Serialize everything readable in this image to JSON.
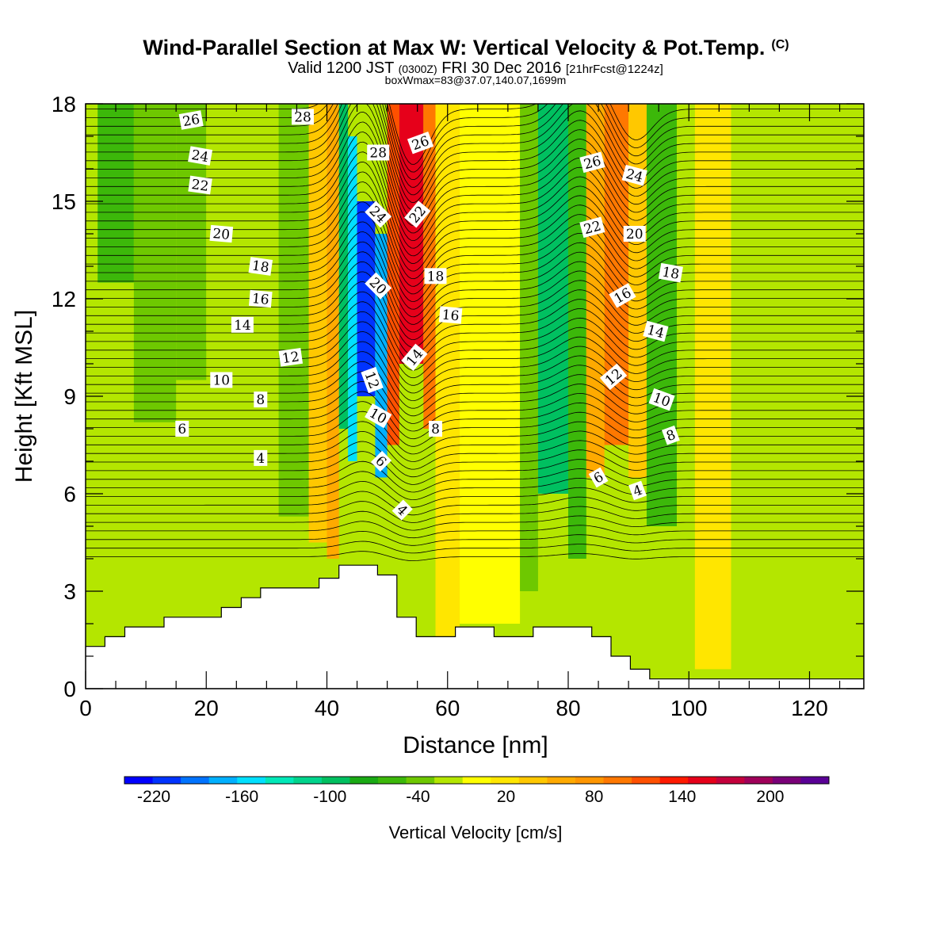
{
  "chart_data": {
    "type": "heatmap",
    "title": "Wind-Parallel Section at Max W: Vertical Velocity & Pot.Temp.",
    "title_mark": "(C)",
    "subtitle": {
      "prefix": "Valid 1200 JST",
      "utc": "(0300Z)",
      "date": "FRI 30 Dec 2016",
      "forecast": "[21hrFcst@1224z]"
    },
    "subsubtitle": "boxWmax=83@37.07,140.07,1699m",
    "xlabel": "Distance [nm]",
    "ylabel": "Height [Kft MSL]",
    "xlim": [
      0,
      129
    ],
    "ylim": [
      0,
      18
    ],
    "x_ticks": [
      0,
      20,
      40,
      60,
      80,
      100,
      120
    ],
    "y_ticks": [
      0,
      3,
      6,
      9,
      12,
      15,
      18
    ],
    "terrain_profile": [
      [
        0,
        1.3
      ],
      [
        3.2,
        1.3
      ],
      [
        3.2,
        1.6
      ],
      [
        6.5,
        1.6
      ],
      [
        6.5,
        1.9
      ],
      [
        13,
        1.9
      ],
      [
        13,
        2.2
      ],
      [
        22.5,
        2.2
      ],
      [
        22.5,
        2.5
      ],
      [
        25.8,
        2.5
      ],
      [
        25.8,
        2.8
      ],
      [
        29,
        2.8
      ],
      [
        29,
        3.1
      ],
      [
        38.7,
        3.1
      ],
      [
        38.7,
        3.4
      ],
      [
        42,
        3.4
      ],
      [
        42,
        3.8
      ],
      [
        48.4,
        3.8
      ],
      [
        48.4,
        3.5
      ],
      [
        51.6,
        3.5
      ],
      [
        51.6,
        2.2
      ],
      [
        54.8,
        2.2
      ],
      [
        54.8,
        1.6
      ],
      [
        61.3,
        1.6
      ],
      [
        61.3,
        1.9
      ],
      [
        67.7,
        1.9
      ],
      [
        67.7,
        1.6
      ],
      [
        74.2,
        1.6
      ],
      [
        74.2,
        1.9
      ],
      [
        83.9,
        1.9
      ],
      [
        83.9,
        1.6
      ],
      [
        87.1,
        1.6
      ],
      [
        87.1,
        1.0
      ],
      [
        90.3,
        1.0
      ],
      [
        90.3,
        0.6
      ],
      [
        93.5,
        0.6
      ],
      [
        93.5,
        0.3
      ],
      [
        129,
        0.3
      ]
    ],
    "vertical_velocity_bands": [
      {
        "x0": 0,
        "x1": 5,
        "w": -20,
        "top": 18
      },
      {
        "x0": 2,
        "x1": 8,
        "w": -60,
        "top": 18,
        "bottom": 12.5
      },
      {
        "x0": 8,
        "x1": 15,
        "w": -40,
        "top": 18,
        "bottom": 8.2
      },
      {
        "x0": 15,
        "x1": 20,
        "w": -30,
        "top": 18,
        "bottom": 9.5
      },
      {
        "x0": 20,
        "x1": 25,
        "w": -20,
        "top": 18,
        "bottom": 10.5
      },
      {
        "x0": 25,
        "x1": 32,
        "w": -5,
        "top": 16,
        "bottom": 6.5
      },
      {
        "x0": 32,
        "x1": 37,
        "w": -40,
        "top": 18,
        "bottom": 5.3
      },
      {
        "x0": 37,
        "x1": 40,
        "w": 45,
        "top": 18,
        "bottom": 4.5
      },
      {
        "x0": 40,
        "x1": 42,
        "w": 75,
        "top": 18,
        "bottom": 4
      },
      {
        "x0": 42,
        "x1": 43.5,
        "w": -100,
        "top": 18,
        "bottom": 8
      },
      {
        "x0": 43.5,
        "x1": 45,
        "w": -150,
        "top": 17,
        "bottom": 7
      },
      {
        "x0": 45,
        "x1": 48,
        "w": -215,
        "top": 15,
        "bottom": 9
      },
      {
        "x0": 48,
        "x1": 50,
        "w": -180,
        "top": 14,
        "bottom": 6.5
      },
      {
        "x0": 50,
        "x1": 52,
        "w": 120,
        "top": 18,
        "bottom": 7.5
      },
      {
        "x0": 52,
        "x1": 56,
        "w": 175,
        "top": 18,
        "bottom": 10
      },
      {
        "x0": 56,
        "x1": 58,
        "w": 100,
        "top": 18,
        "bottom": 8
      },
      {
        "x0": 58,
        "x1": 62,
        "w": 30,
        "top": 18,
        "bottom": 1.6
      },
      {
        "x0": 62,
        "x1": 72,
        "w": 10,
        "top": 18,
        "bottom": 2
      },
      {
        "x0": 72,
        "x1": 75,
        "w": -30,
        "top": 18,
        "bottom": 3
      },
      {
        "x0": 75,
        "x1": 80,
        "w": -90,
        "top": 18,
        "bottom": 6
      },
      {
        "x0": 80,
        "x1": 83,
        "w": -50,
        "top": 18,
        "bottom": 4
      },
      {
        "x0": 83,
        "x1": 86,
        "w": 60,
        "top": 18,
        "bottom": 6.5
      },
      {
        "x0": 86,
        "x1": 90,
        "w": 100,
        "top": 18,
        "bottom": 7.5
      },
      {
        "x0": 90,
        "x1": 93,
        "w": 40,
        "top": 18,
        "bottom": 6.5
      },
      {
        "x0": 93,
        "x1": 98,
        "w": -60,
        "top": 18,
        "bottom": 5
      },
      {
        "x0": 98,
        "x1": 101,
        "w": -20,
        "top": 18,
        "bottom": 4
      },
      {
        "x0": 101,
        "x1": 107,
        "w": 20,
        "top": 18,
        "bottom": 0.6
      },
      {
        "x0": 107,
        "x1": 129,
        "w": -20,
        "top": 18,
        "bottom": 0.3
      }
    ],
    "colorbar": {
      "label": "Vertical Velocity [cm/s]",
      "levels": [
        -240,
        -220,
        -200,
        -180,
        -160,
        -140,
        -120,
        -100,
        -80,
        -60,
        -40,
        -20,
        0,
        20,
        40,
        60,
        80,
        100,
        120,
        140,
        160,
        180,
        200,
        220,
        240
      ],
      "tick_labels": [
        "-220",
        "-160",
        "-100",
        "-40",
        "20",
        "80",
        "140",
        "200"
      ],
      "colors": [
        "#0000ff",
        "#0033ff",
        "#0073ff",
        "#00b0ff",
        "#00e0ff",
        "#00e8b8",
        "#00d48c",
        "#00c060",
        "#1aaa14",
        "#3cb80a",
        "#6ec800",
        "#b4e600",
        "#ffff00",
        "#ffe600",
        "#ffc800",
        "#ffaa00",
        "#ff9600",
        "#ff7800",
        "#ff5000",
        "#ff1a00",
        "#e6001a",
        "#c4003c",
        "#a0005a",
        "#7a0078",
        "#5a0096"
      ]
    },
    "potential_temperature": {
      "units": "C",
      "levels": [
        2,
        4,
        6,
        8,
        10,
        12,
        14,
        16,
        18,
        20,
        22,
        24,
        26,
        28
      ],
      "labels": [
        {
          "x": 17.5,
          "y": 17.5,
          "text": "26",
          "rot": -10
        },
        {
          "x": 19,
          "y": 16.4,
          "text": "24",
          "rot": 10
        },
        {
          "x": 19,
          "y": 15.5,
          "text": "22",
          "rot": 8
        },
        {
          "x": 22.5,
          "y": 14.0,
          "text": "20",
          "rot": 5
        },
        {
          "x": 29,
          "y": 13.0,
          "text": "18",
          "rot": 8
        },
        {
          "x": 29,
          "y": 12.0,
          "text": "16",
          "rot": 5
        },
        {
          "x": 26,
          "y": 11.2,
          "text": "14",
          "rot": 0
        },
        {
          "x": 34,
          "y": 10.2,
          "text": "12",
          "rot": -8
        },
        {
          "x": 22.5,
          "y": 9.5,
          "text": "10",
          "rot": 0
        },
        {
          "x": 29,
          "y": 8.9,
          "text": "8",
          "rot": 0
        },
        {
          "x": 16,
          "y": 8.0,
          "text": "6",
          "rot": 0
        },
        {
          "x": 29,
          "y": 7.1,
          "text": "4",
          "rot": 0
        },
        {
          "x": 36,
          "y": 17.6,
          "text": "28",
          "rot": 0
        },
        {
          "x": 48.5,
          "y": 16.5,
          "text": "28",
          "rot": 0
        },
        {
          "x": 55.5,
          "y": 16.8,
          "text": "26",
          "rot": -20
        },
        {
          "x": 48.5,
          "y": 14.6,
          "text": "24",
          "rot": 45
        },
        {
          "x": 55,
          "y": 14.6,
          "text": "22",
          "rot": -50
        },
        {
          "x": 48.5,
          "y": 12.4,
          "text": "20",
          "rot": 45
        },
        {
          "x": 58,
          "y": 12.7,
          "text": "18",
          "rot": 0
        },
        {
          "x": 60.5,
          "y": 11.5,
          "text": "16",
          "rot": 5
        },
        {
          "x": 54.5,
          "y": 10.2,
          "text": "14",
          "rot": -50
        },
        {
          "x": 47.5,
          "y": 9.5,
          "text": "12",
          "rot": 70
        },
        {
          "x": 48.5,
          "y": 8.4,
          "text": "10",
          "rot": 30
        },
        {
          "x": 58,
          "y": 8.0,
          "text": "8",
          "rot": 0
        },
        {
          "x": 49,
          "y": 7.0,
          "text": "6",
          "rot": 45
        },
        {
          "x": 52.5,
          "y": 5.5,
          "text": "4",
          "rot": 45
        },
        {
          "x": 84,
          "y": 16.2,
          "text": "26",
          "rot": -15
        },
        {
          "x": 91,
          "y": 15.8,
          "text": "24",
          "rot": 15
        },
        {
          "x": 84,
          "y": 14.2,
          "text": "22",
          "rot": -15
        },
        {
          "x": 91,
          "y": 14.0,
          "text": "20",
          "rot": 0
        },
        {
          "x": 97,
          "y": 12.8,
          "text": "18",
          "rot": 10
        },
        {
          "x": 89,
          "y": 12.1,
          "text": "16",
          "rot": -30
        },
        {
          "x": 94.5,
          "y": 11.0,
          "text": "14",
          "rot": 15
        },
        {
          "x": 87.5,
          "y": 9.6,
          "text": "12",
          "rot": -40
        },
        {
          "x": 95.5,
          "y": 8.9,
          "text": "10",
          "rot": 20
        },
        {
          "x": 97,
          "y": 7.8,
          "text": "8",
          "rot": -20
        },
        {
          "x": 85,
          "y": 6.5,
          "text": "6",
          "rot": -30
        },
        {
          "x": 91.5,
          "y": 6.1,
          "text": "4",
          "rot": -20
        }
      ]
    }
  }
}
